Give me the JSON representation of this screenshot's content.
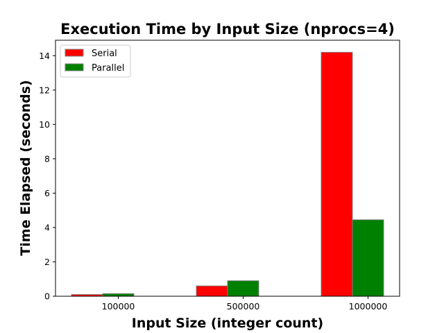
{
  "chart_data": {
    "type": "bar",
    "title": "Execution Time by Input Size (nprocs=4)",
    "xlabel": "Input Size (integer count)",
    "ylabel": "Time Elapsed (seconds)",
    "categories": [
      "100000",
      "500000",
      "1000000"
    ],
    "series": [
      {
        "name": "Serial",
        "values": [
          0.1,
          0.6,
          14.2
        ],
        "color": "#ff0000"
      },
      {
        "name": "Parallel",
        "values": [
          0.15,
          0.9,
          4.45
        ],
        "color": "#008000"
      }
    ],
    "ylim": [
      0,
      14.9
    ],
    "yticks": [
      "0",
      "2",
      "4",
      "6",
      "8",
      "10",
      "12",
      "14"
    ],
    "grid": false,
    "legend_position": "upper-left",
    "bar_edge_color": "#808080"
  }
}
